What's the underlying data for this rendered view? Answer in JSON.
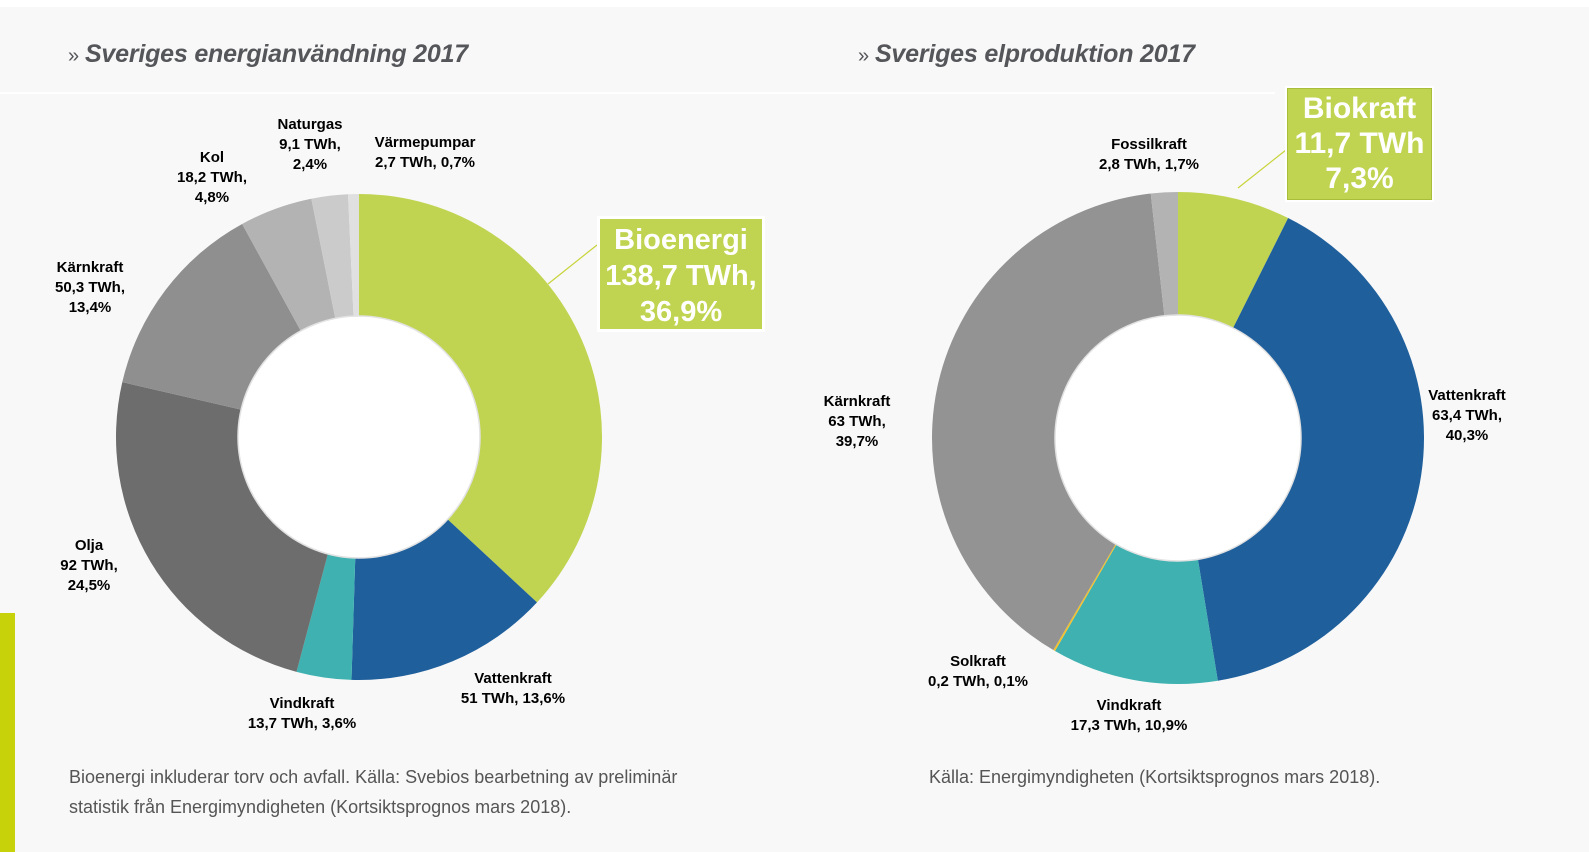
{
  "headings": {
    "chevron": "»",
    "left": "Sveriges energianvändning 2017",
    "right": "Sveriges elproduktion 2017"
  },
  "colors": {
    "accent_bar": "#c8d20a",
    "callout_green": "#c1d451"
  },
  "chart_data": [
    {
      "type": "pie",
      "subtype": "donut",
      "title": "Sveriges energianvändning 2017",
      "unit": "TWh",
      "slices": [
        {
          "name": "Bioenergi",
          "value": 138.7,
          "percent": 36.9,
          "color": "#c1d451",
          "label": [
            "Bioenergi",
            "138,7 TWh,",
            "36,9%"
          ],
          "highlight": true
        },
        {
          "name": "Vattenkraft",
          "value": 51,
          "percent": 13.6,
          "color": "#1f5f9c",
          "label": [
            "Vattenkraft",
            "51 TWh, 13,6%"
          ]
        },
        {
          "name": "Vindkraft",
          "value": 13.7,
          "percent": 3.6,
          "color": "#3eb1b0",
          "label": [
            "Vindkraft",
            "13,7 TWh, 3,6%"
          ]
        },
        {
          "name": "Olja",
          "value": 92,
          "percent": 24.5,
          "color": "#6d6d6d",
          "label": [
            "Olja",
            "92 TWh,",
            "24,5%"
          ]
        },
        {
          "name": "Kärnkraft",
          "value": 50.3,
          "percent": 13.4,
          "color": "#8f8f8f",
          "label": [
            "Kärnkraft",
            "50,3 TWh,",
            "13,4%"
          ]
        },
        {
          "name": "Kol",
          "value": 18.2,
          "percent": 4.8,
          "color": "#b3b3b3",
          "label": [
            "Kol",
            "18,2 TWh,",
            "4,8%"
          ]
        },
        {
          "name": "Naturgas",
          "value": 9.1,
          "percent": 2.4,
          "color": "#cbcbcb",
          "label": [
            "Naturgas",
            "9,1 TWh,",
            "2,4%"
          ]
        },
        {
          "name": "Värmepumpar",
          "value": 2.7,
          "percent": 0.7,
          "color": "#e0e0e0",
          "label": [
            "Värmepumpar",
            "2,7 TWh, 0,7%"
          ]
        }
      ],
      "caption": [
        "Bioenergi inkluderar torv och avfall. Källa: Svebios bearbetning av preliminär",
        "statistik från Energimyndigheten (Kortsiktsprognos mars 2018)."
      ]
    },
    {
      "type": "pie",
      "subtype": "donut",
      "title": "Sveriges elproduktion 2017",
      "unit": "TWh",
      "slices": [
        {
          "name": "Biokraft",
          "value": 11.7,
          "percent": 7.3,
          "color": "#c1d451",
          "label": [
            "Biokraft",
            "11,7 TWh",
            "7,3%"
          ],
          "highlight": true
        },
        {
          "name": "Vattenkraft",
          "value": 63.4,
          "percent": 40.3,
          "color": "#1f5f9c",
          "label": [
            "Vattenkraft",
            "63,4 TWh,",
            "40,3%"
          ]
        },
        {
          "name": "Vindkraft",
          "value": 17.3,
          "percent": 10.9,
          "color": "#3eb1b0",
          "label": [
            "Vindkraft",
            "17,3 TWh, 10,9%"
          ]
        },
        {
          "name": "Solkraft",
          "value": 0.2,
          "percent": 0.1,
          "color": "#f2c12e",
          "label": [
            "Solkraft",
            "0,2 TWh, 0,1%"
          ]
        },
        {
          "name": "Kärnkraft",
          "value": 63,
          "percent": 39.7,
          "color": "#939393",
          "label": [
            "Kärnkraft",
            "63 TWh,",
            "39,7%"
          ]
        },
        {
          "name": "Fossilkraft",
          "value": 2.8,
          "percent": 1.7,
          "color": "#b3b3b3",
          "label": [
            "Fossilkraft",
            "2,8 TWh, 1,7%"
          ]
        }
      ],
      "caption": [
        "Källa:  Energimyndigheten (Kortsiktsprognos mars 2018)."
      ]
    }
  ]
}
